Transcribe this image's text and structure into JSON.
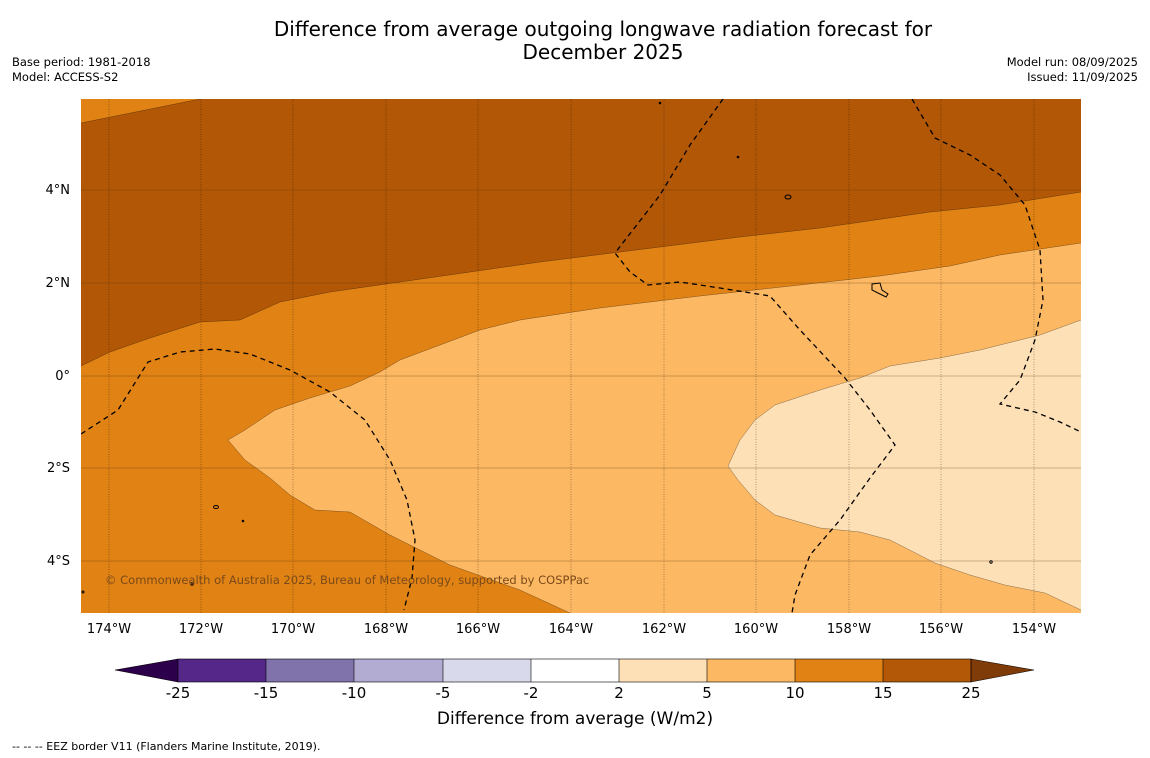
{
  "header": {
    "title": "Difference from average outgoing longwave radiation forecast for December 2025",
    "base_period": "Base period: 1981-2018",
    "model": "Model: ACCESS-S2",
    "model_run": "Model run: 08/09/2025",
    "issued": "Issued: 11/09/2025"
  },
  "map": {
    "lat_labels": [
      "4°N",
      "2°N",
      "0°",
      "2°S",
      "4°S"
    ],
    "lon_labels": [
      "174°W",
      "172°W",
      "170°W",
      "168°W",
      "166°W",
      "164°W",
      "162°W",
      "160°W",
      "158°W",
      "156°W",
      "154°W"
    ],
    "copyright": "© Commonwealth of Australia 2025, Bureau of Meteorology, supported by COSPPac",
    "colors": {
      "band_15_25": "#b15706",
      "band_10_15": "#e08214",
      "band_5_10": "#fdb863",
      "band_2_5": "#fee0b6"
    }
  },
  "colorbar": {
    "title": "Difference from average (W/m2)",
    "ticks": [
      "-25",
      "-15",
      "-10",
      "-5",
      "-2",
      "2",
      "5",
      "10",
      "15",
      "25"
    ],
    "colors": [
      "#2d004b",
      "#542788",
      "#8073ac",
      "#b2abd2",
      "#d8daeb",
      "#ffffff",
      "#fee0b6",
      "#fdb863",
      "#e08214",
      "#b35806",
      "#7f3b08"
    ]
  },
  "footer": {
    "eez_note": "--  --  -- EEZ border V11 (Flanders Marine Institute, 2019)."
  }
}
